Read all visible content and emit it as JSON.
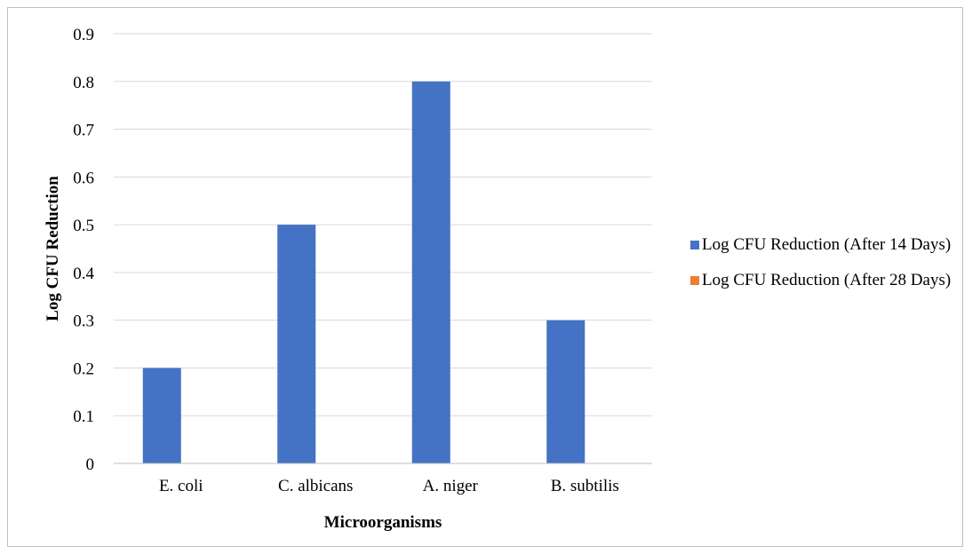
{
  "chart_data": {
    "type": "bar",
    "categories": [
      "E. coli",
      "C. albicans",
      "A. niger",
      "B. subtilis"
    ],
    "series": [
      {
        "name": "Log CFU Reduction (After 14 Days)",
        "values": [
          0.2,
          0.5,
          0.8,
          0.3
        ],
        "color": "#4472c4"
      },
      {
        "name": "Log CFU Reduction (After 28 Days)",
        "values": [
          0,
          0,
          0,
          0
        ],
        "color": "#ed7d31"
      }
    ],
    "xlabel": "Microorganisms",
    "ylabel": "Log CFU Reduction",
    "ylim": [
      0,
      0.9
    ],
    "yticks": [
      "0",
      "0.1",
      "0.2",
      "0.3",
      "0.4",
      "0.5",
      "0.6",
      "0.7",
      "0.8",
      "0.9"
    ],
    "grid": true,
    "legend_position": "right"
  }
}
